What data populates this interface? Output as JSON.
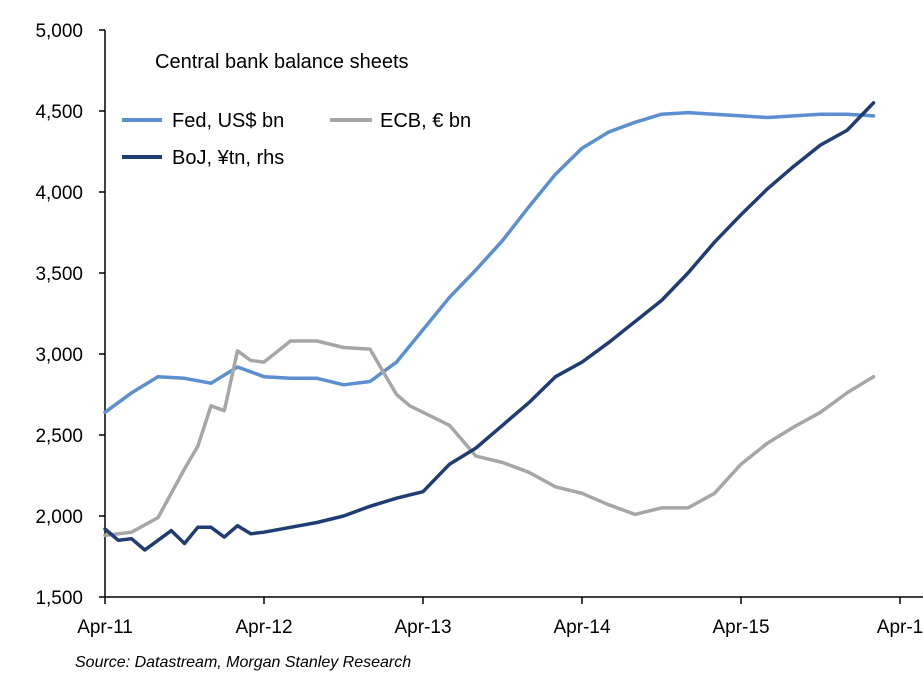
{
  "chart_data": {
    "type": "line",
    "title": "Central bank balance sheets",
    "source": "Source: Datastream,  Morgan Stanley Research",
    "xlabel": "",
    "ylabel": "",
    "ylim": [
      1500,
      5000
    ],
    "y_ticks": [
      "5,000",
      "4,500",
      "4,000",
      "3,500",
      "3,000",
      "2,500",
      "2,000",
      "1,500"
    ],
    "y_tick_values": [
      5000,
      4500,
      4000,
      3500,
      3000,
      2500,
      2000,
      1500
    ],
    "x_ticks": [
      "Apr-11",
      "Apr-12",
      "Apr-13",
      "Apr-14",
      "Apr-15",
      "Apr-1"
    ],
    "x_tick_values": [
      0,
      12,
      24,
      36,
      48,
      60
    ],
    "xlim": [
      0,
      60
    ],
    "x_unit": "months since Apr-11",
    "series": [
      {
        "name": "Fed, US$ bn",
        "color": "#5b8fd0",
        "x": [
          0,
          2,
          4,
          6,
          8,
          10,
          12,
          14,
          16,
          18,
          20,
          22,
          24,
          26,
          28,
          30,
          32,
          34,
          36,
          38,
          40,
          42,
          44,
          46,
          48,
          50,
          52,
          54,
          56,
          58
        ],
        "values": [
          2640,
          2760,
          2860,
          2850,
          2820,
          2920,
          2860,
          2850,
          2850,
          2810,
          2830,
          2950,
          3150,
          3350,
          3520,
          3700,
          3910,
          4110,
          4270,
          4370,
          4430,
          4480,
          4490,
          4480,
          4470,
          4460,
          4470,
          4480,
          4480,
          4470
        ]
      },
      {
        "name": "ECB, € bn",
        "color": "#a6a6a6",
        "x": [
          0,
          2,
          4,
          6,
          7,
          8,
          9,
          10,
          11,
          12,
          14,
          16,
          18,
          20,
          22,
          23,
          24,
          26,
          28,
          30,
          32,
          34,
          36,
          38,
          40,
          42,
          44,
          46,
          48,
          50,
          52,
          54,
          56,
          58
        ],
        "values": [
          1880,
          1900,
          1990,
          2290,
          2430,
          2680,
          2650,
          3020,
          2960,
          2950,
          3080,
          3080,
          3040,
          3030,
          2750,
          2680,
          2640,
          2560,
          2370,
          2330,
          2270,
          2180,
          2140,
          2070,
          2010,
          2050,
          2050,
          2140,
          2320,
          2450,
          2550,
          2640,
          2760,
          2860
        ]
      },
      {
        "name": "BoJ, ¥tn, rhs",
        "color": "#1f3d73",
        "x": [
          0,
          1,
          2,
          3,
          4,
          5,
          6,
          7,
          8,
          9,
          10,
          11,
          12,
          14,
          16,
          18,
          20,
          22,
          24,
          26,
          28,
          30,
          32,
          34,
          36,
          38,
          40,
          42,
          44,
          46,
          48,
          50,
          52,
          54,
          56,
          58
        ],
        "values": [
          1920,
          1850,
          1860,
          1790,
          1850,
          1910,
          1830,
          1930,
          1930,
          1870,
          1940,
          1890,
          1900,
          1930,
          1960,
          2000,
          2060,
          2110,
          2150,
          2320,
          2420,
          2560,
          2700,
          2860,
          2950,
          3070,
          3200,
          3330,
          3500,
          3690,
          3860,
          4020,
          4160,
          4290,
          4380,
          4550
        ]
      }
    ]
  }
}
